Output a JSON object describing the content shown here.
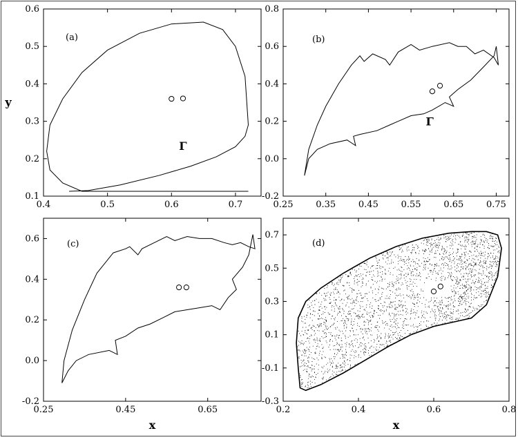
{
  "chart_data": [
    {
      "id": "a",
      "type": "line",
      "panel_label": "(a)",
      "xlabel": "",
      "ylabel": "y",
      "xlim": [
        0.4,
        0.74
      ],
      "ylim": [
        0.1,
        0.6
      ],
      "xticks": [
        0.4,
        0.5,
        0.6,
        0.7
      ],
      "xtick_labels": [
        "0.4",
        "0.5",
        "0.6",
        "0.7"
      ],
      "yticks": [
        0.1,
        0.2,
        0.3,
        0.4,
        0.5,
        0.6
      ],
      "ytick_labels": [
        "0.1",
        "0.2",
        "0.3",
        "0.4",
        "0.5",
        "0.6"
      ],
      "curve_label": "Γ",
      "curve_label_at": [
        0.618,
        0.235
      ],
      "fixed_points": [
        [
          0.6,
          0.36
        ],
        [
          0.618,
          0.361
        ]
      ],
      "series": [
        {
          "style": "closed-curve",
          "x": [
            0.44,
            0.47,
            0.52,
            0.58,
            0.63,
            0.67,
            0.7,
            0.715,
            0.72,
            0.715,
            0.7,
            0.68,
            0.65,
            0.6,
            0.55,
            0.5,
            0.46,
            0.43,
            0.41,
            0.405,
            0.41,
            0.43,
            0.46,
            0.5,
            0.54,
            0.58,
            0.62,
            0.65,
            0.68,
            0.7,
            0.715,
            0.72
          ],
          "y": [
            0.113,
            0.115,
            0.13,
            0.155,
            0.18,
            0.205,
            0.232,
            0.26,
            0.29,
            0.42,
            0.5,
            0.545,
            0.565,
            0.56,
            0.535,
            0.49,
            0.43,
            0.36,
            0.29,
            0.22,
            0.17,
            0.135,
            0.113,
            0.113,
            0.113,
            0.113,
            0.113,
            0.113,
            0.113,
            0.113,
            0.113,
            0.113
          ]
        }
      ]
    },
    {
      "id": "b",
      "type": "line",
      "panel_label": "(b)",
      "xlabel": "",
      "ylabel": "",
      "xlim": [
        0.25,
        0.78
      ],
      "ylim": [
        -0.2,
        0.8
      ],
      "xticks": [
        0.25,
        0.35,
        0.45,
        0.55,
        0.65,
        0.75
      ],
      "xtick_labels": [
        "0.25",
        "0.35",
        "0.45",
        "0.55",
        "0.65",
        "0.75"
      ],
      "yticks": [
        -0.2,
        0.0,
        0.2,
        0.4,
        0.6,
        0.8
      ],
      "ytick_labels": [
        "-0.2",
        "0.0",
        "0.2",
        "0.4",
        "0.6",
        "0.8"
      ],
      "curve_label": "Γ",
      "curve_label_at": [
        0.594,
        0.2
      ],
      "fixed_points": [
        [
          0.6,
          0.36
        ],
        [
          0.618,
          0.39
        ]
      ],
      "series": [
        {
          "style": "closed-curve",
          "x": [
            0.3,
            0.31,
            0.33,
            0.36,
            0.4,
            0.42,
            0.415,
            0.43,
            0.47,
            0.5,
            0.52,
            0.55,
            0.58,
            0.6,
            0.63,
            0.65,
            0.64,
            0.66,
            0.69,
            0.72,
            0.745,
            0.75,
            0.755,
            0.745,
            0.72,
            0.7,
            0.68,
            0.66,
            0.64,
            0.6,
            0.57,
            0.55,
            0.52,
            0.5,
            0.49,
            0.46,
            0.44,
            0.43,
            0.41,
            0.38,
            0.35,
            0.33,
            0.31,
            0.3
          ],
          "y": [
            -0.09,
            0.0,
            0.05,
            0.08,
            0.1,
            0.07,
            0.12,
            0.13,
            0.15,
            0.18,
            0.2,
            0.23,
            0.24,
            0.26,
            0.3,
            0.28,
            0.33,
            0.37,
            0.42,
            0.49,
            0.55,
            0.6,
            0.5,
            0.54,
            0.58,
            0.56,
            0.6,
            0.6,
            0.62,
            0.6,
            0.58,
            0.61,
            0.57,
            0.5,
            0.53,
            0.56,
            0.52,
            0.55,
            0.5,
            0.4,
            0.28,
            0.18,
            0.05,
            -0.09
          ]
        }
      ]
    },
    {
      "id": "c",
      "type": "line",
      "panel_label": "(c)",
      "xlabel": "x",
      "ylabel": "",
      "xlim": [
        0.25,
        0.78
      ],
      "ylim": [
        -0.2,
        0.7
      ],
      "xticks": [
        0.25,
        0.45,
        0.65
      ],
      "xtick_labels": [
        "0.25",
        "0.45",
        "0.65"
      ],
      "yticks": [
        -0.2,
        0.0,
        0.2,
        0.4,
        0.6
      ],
      "ytick_labels": [
        "-0.2",
        "0.0",
        "0.2",
        "0.4",
        "0.6"
      ],
      "fixed_points": [
        [
          0.58,
          0.36
        ],
        [
          0.598,
          0.36
        ]
      ],
      "series": [
        {
          "style": "closed-curve",
          "x": [
            0.295,
            0.31,
            0.33,
            0.36,
            0.41,
            0.43,
            0.425,
            0.45,
            0.48,
            0.51,
            0.54,
            0.57,
            0.6,
            0.63,
            0.66,
            0.68,
            0.7,
            0.72,
            0.71,
            0.735,
            0.75,
            0.76,
            0.765,
            0.75,
            0.73,
            0.71,
            0.69,
            0.66,
            0.63,
            0.6,
            0.57,
            0.55,
            0.52,
            0.49,
            0.48,
            0.46,
            0.45,
            0.42,
            0.38,
            0.35,
            0.32,
            0.3,
            0.295
          ],
          "y": [
            -0.11,
            -0.05,
            0.0,
            0.03,
            0.05,
            0.03,
            0.1,
            0.12,
            0.16,
            0.18,
            0.21,
            0.24,
            0.25,
            0.26,
            0.27,
            0.25,
            0.31,
            0.35,
            0.4,
            0.46,
            0.52,
            0.62,
            0.55,
            0.56,
            0.58,
            0.57,
            0.58,
            0.6,
            0.6,
            0.61,
            0.59,
            0.61,
            0.58,
            0.55,
            0.52,
            0.56,
            0.55,
            0.53,
            0.43,
            0.3,
            0.15,
            0.0,
            -0.11
          ]
        }
      ]
    },
    {
      "id": "d",
      "type": "scatter",
      "panel_label": "(d)",
      "xlabel": "x",
      "ylabel": "",
      "xlim": [
        0.2,
        0.8
      ],
      "ylim": [
        -0.3,
        0.8
      ],
      "xticks": [
        0.2,
        0.4,
        0.6,
        0.8
      ],
      "xtick_labels": [
        "0.2",
        "0.4",
        "0.6",
        "0.8"
      ],
      "yticks": [
        -0.3,
        -0.1,
        0.1,
        0.3,
        0.5,
        0.7
      ],
      "ytick_labels": [
        "-0.3",
        "-0.1",
        "0.1",
        "0.3",
        "0.5",
        "0.7"
      ],
      "fixed_points": [
        [
          0.6,
          0.36
        ],
        [
          0.618,
          0.39
        ]
      ],
      "attractor_boundary": {
        "x": [
          0.245,
          0.26,
          0.3,
          0.36,
          0.42,
          0.48,
          0.54,
          0.6,
          0.66,
          0.7,
          0.74,
          0.77,
          0.78,
          0.77,
          0.74,
          0.7,
          0.64,
          0.57,
          0.5,
          0.43,
          0.36,
          0.3,
          0.26,
          0.24,
          0.235,
          0.24,
          0.245
        ],
        "y": [
          -0.22,
          -0.235,
          -0.2,
          -0.13,
          -0.05,
          0.03,
          0.1,
          0.15,
          0.18,
          0.2,
          0.28,
          0.45,
          0.62,
          0.7,
          0.72,
          0.72,
          0.71,
          0.68,
          0.63,
          0.56,
          0.47,
          0.38,
          0.3,
          0.2,
          0.05,
          -0.1,
          -0.22
        ]
      },
      "series": [
        {
          "style": "dense-points",
          "color": "#000000"
        }
      ]
    }
  ]
}
